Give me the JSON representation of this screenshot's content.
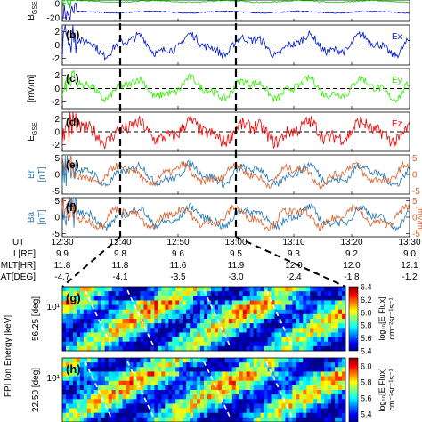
{
  "chart_data": {
    "type": "line",
    "time_axis": {
      "label": "UT",
      "ticks": [
        "12:30",
        "12:40",
        "12:50",
        "13:00",
        "13:10",
        "13:20",
        "13:30"
      ],
      "range": [
        "12:30",
        "13:30"
      ]
    },
    "orbit_table": [
      {
        "label": "L[RE]",
        "values": [
          "9.9",
          "9.8",
          "9.6",
          "9.5",
          "9.3",
          "9.2",
          "9.0"
        ]
      },
      {
        "label": "MLT[HR]",
        "values": [
          "11.8",
          "11.8",
          "11.6",
          "11.9",
          "12.0",
          "12.0",
          "12.1"
        ]
      },
      {
        "label": "MLAT[DEG]",
        "values": [
          "-4.7",
          "-4.1",
          "-3.5",
          "-3.0",
          "-2.4",
          "-1.8",
          "-1.2"
        ]
      }
    ],
    "event_markers": [
      "12:40",
      "13:00"
    ],
    "panels": [
      {
        "id": "a",
        "ylabel": "B",
        "ylabel_sub": "GSE",
        "yticks": [
          "0",
          "-20"
        ],
        "ylim": [
          -25,
          5
        ],
        "series": [
          {
            "color": "#00cc00"
          },
          {
            "color": "#0000cc"
          }
        ]
      },
      {
        "id": "b",
        "tag": "(b)",
        "ylabel": "",
        "yticks": [
          "2",
          "0",
          "-2"
        ],
        "ylim": [
          -3,
          3
        ],
        "zero_dashed": true,
        "series": [
          {
            "name": "Ex",
            "color": "#0018c8"
          }
        ]
      },
      {
        "id": "c",
        "tag": "(c)",
        "ylabel": "[mV/m]",
        "yticks": [
          "2",
          "0",
          "-2"
        ],
        "ylim": [
          -3,
          3
        ],
        "zero_dashed": true,
        "series": [
          {
            "name": "Ey",
            "color": "#33ee00"
          }
        ]
      },
      {
        "id": "d",
        "tag": "(d)",
        "ylabel": "E",
        "ylabel_sub": "GSE",
        "yticks": [
          "2",
          "0",
          "-2"
        ],
        "ylim": [
          -3,
          3
        ],
        "zero_dashed": true,
        "series": [
          {
            "name": "Ez",
            "color": "#ee0000"
          }
        ]
      },
      {
        "id": "e",
        "tag": "(e)",
        "ylabel": "Br",
        "ylabel2": "[nT]",
        "yticks": [
          "5",
          "0",
          "-5"
        ],
        "ylim": [
          -6,
          6
        ],
        "right_label": "Ea",
        "right_label2": "[mV/m]",
        "right_yticks": [
          "5",
          "0",
          "-5"
        ],
        "series": [
          {
            "color": "#1f77b4"
          },
          {
            "color": "#d9602b"
          }
        ]
      },
      {
        "id": "f",
        "tag": "(f)",
        "ylabel": "Ba",
        "ylabel2": "[nT]",
        "yticks": [
          "5",
          "0",
          "-5"
        ],
        "ylim": [
          -6,
          6
        ],
        "right_label": "Er",
        "right_yticks": [
          "5",
          "0",
          "-5"
        ],
        "series": [
          {
            "color": "#1f77b4"
          },
          {
            "color": "#d9602b"
          }
        ]
      }
    ],
    "spectrograms": [
      {
        "id": "g",
        "tag": "(g)",
        "ylabel": "56.25 [deg]",
        "ytick": "10¹",
        "colorbar_ticks": [
          "6.4",
          "6.2",
          "6.0",
          "5.8",
          "5.6",
          "5.4"
        ],
        "colorbar_range": [
          5.4,
          6.4
        ],
        "colorbar_label": "log₁₀[E Flux]",
        "colorbar_units": "cm⁻²sr⁻¹s⁻¹"
      },
      {
        "id": "h",
        "tag": "(h)",
        "ylabel": "22.50 [deg]",
        "ytick": "10¹",
        "colorbar_ticks": [
          "6.0",
          "5.8",
          "5.6",
          "5.4"
        ],
        "colorbar_range": [
          5.3,
          6.1
        ],
        "colorbar_label": "log₁₀[E Flux]",
        "colorbar_units": "cm⁻²sr⁻¹s⁻¹"
      }
    ],
    "spectrogram_axis_label": "FPI Ion Energy [keV]"
  }
}
